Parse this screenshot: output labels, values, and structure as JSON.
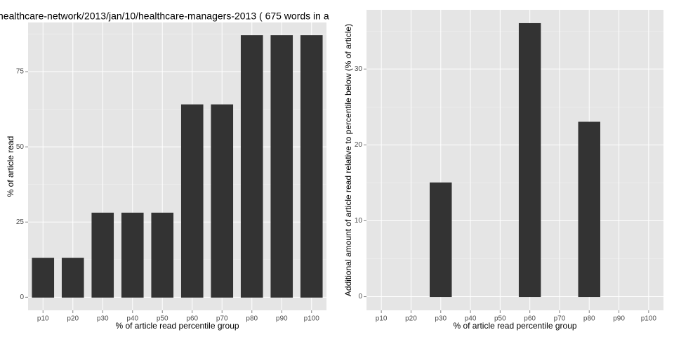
{
  "chart_data": [
    {
      "type": "bar",
      "title": "healthcare-network/2013/jan/10/healthcare-managers-2013 ( 675 words in a",
      "x_label": "% of article read percentile group",
      "y_label": "% of article read",
      "categories": [
        "p10",
        "p20",
        "p30",
        "p40",
        "p50",
        "p60",
        "p70",
        "p80",
        "p90",
        "p100"
      ],
      "values": [
        13,
        13,
        28,
        28,
        28,
        64,
        64,
        87,
        87,
        87
      ],
      "color": "#333333",
      "ylim": [
        -4.35,
        91.35
      ],
      "yticks": [
        0,
        25,
        50,
        75
      ],
      "grid": true
    },
    {
      "type": "bar",
      "x_label": "% of article read percentile group",
      "y_label": "Additional amount of article read relative to percentile below (% of article)",
      "categories": [
        "p10",
        "p20",
        "p30",
        "p40",
        "p50",
        "p60",
        "p70",
        "p80",
        "p90",
        "p100"
      ],
      "values": [
        0,
        0,
        15,
        0,
        0,
        36,
        0,
        23,
        0,
        0
      ],
      "color": "#333333",
      "ylim": [
        -1.8,
        37.8
      ],
      "yticks": [
        0,
        10,
        20,
        30
      ],
      "grid": true
    }
  ]
}
